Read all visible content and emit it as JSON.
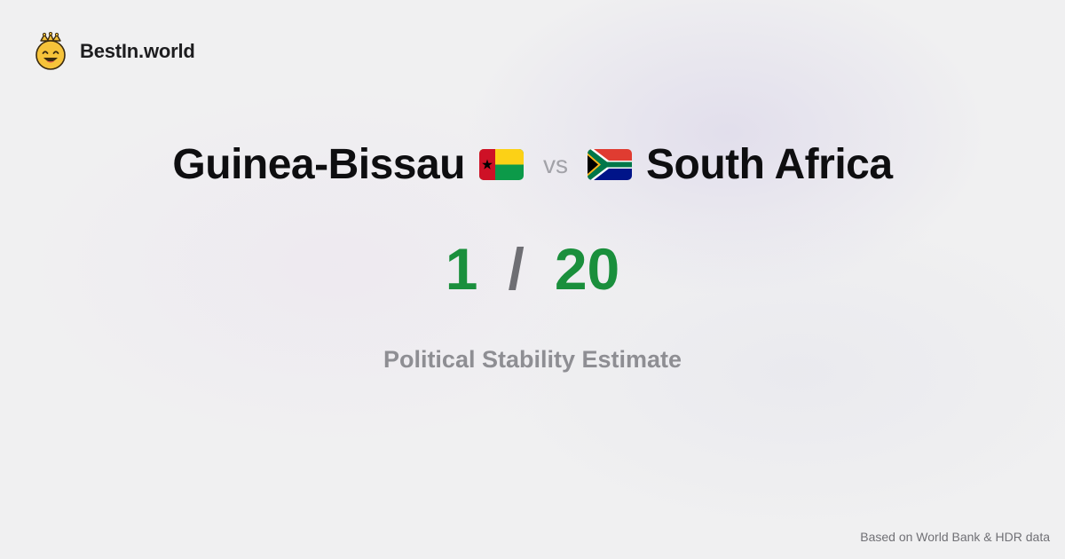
{
  "brand": {
    "name": "BestIn.world",
    "logo_icon": "crowned-smiley-icon"
  },
  "comparison": {
    "left_country": "Guinea-Bissau",
    "left_flag_icon": "guinea-bissau-flag-icon",
    "vs_label": "vs",
    "right_country": "South Africa",
    "right_flag_icon": "south-africa-flag-icon"
  },
  "scores": {
    "left_value": "1",
    "separator": "/",
    "right_value": "20",
    "value_color": "#1a8f3c"
  },
  "metric": {
    "label": "Political Stability Estimate"
  },
  "footer": {
    "source": "Based on World Bank & HDR data"
  }
}
